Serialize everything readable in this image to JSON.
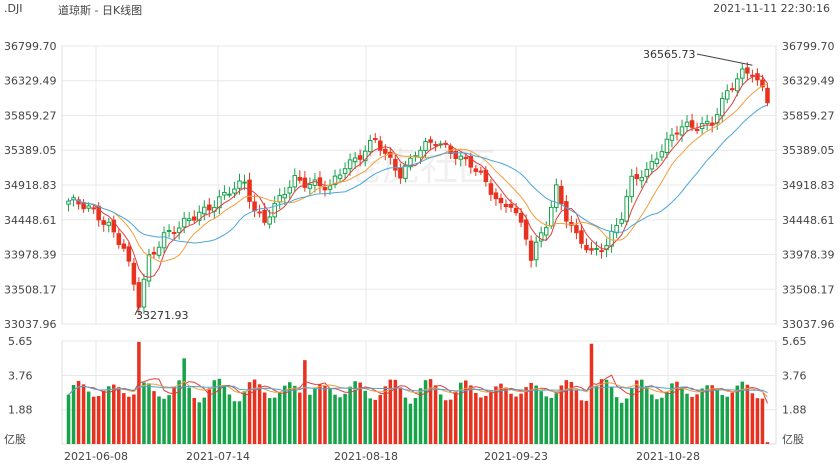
{
  "header": {
    "symbol": ".DJI",
    "name": "道琼斯 - 日K线图",
    "datetime": "2021-11-11 22:30:16"
  },
  "watermark": "老虎社区",
  "colors": {
    "up": "#16a34a",
    "down": "#e8321f",
    "ma_short": "#e23d3d",
    "ma_mid": "#f2a03a",
    "ma_long": "#4aa6dc",
    "grid": "#e8e8e8",
    "axis_text": "#444444"
  },
  "chart_data": [
    {
      "type": "candlestick",
      "title": "道琼斯 - 日K线图",
      "price_ticks": [
        "36799.70",
        "36329.49",
        "35859.27",
        "35389.05",
        "34918.83",
        "34448.61",
        "33978.39",
        "33508.17",
        "33037.96"
      ],
      "ylim": [
        33037.96,
        36799.7
      ],
      "date_ticks": [
        "2021-06-08",
        "2021-07-14",
        "2021-08-18",
        "2021-09-23",
        "2021-10-28"
      ],
      "annotations": {
        "high_label": "36565.73",
        "low_label": "33271.93"
      },
      "grid": true
    },
    {
      "type": "bar",
      "volume_ticks": [
        "5.65",
        "3.76",
        "1.88"
      ],
      "unit": "亿股",
      "ylim": [
        0,
        5.65
      ]
    }
  ]
}
